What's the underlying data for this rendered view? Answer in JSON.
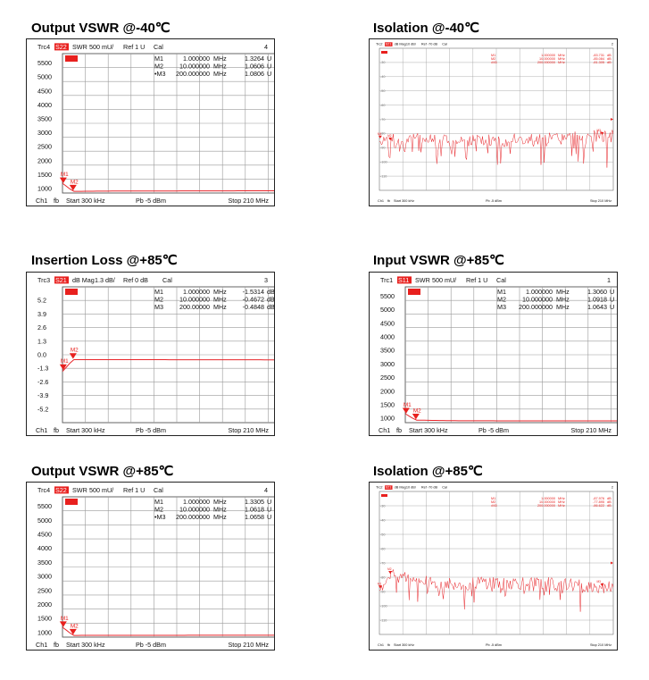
{
  "panels": [
    {
      "key": "p1",
      "title": "Output VSWR @-40℃",
      "header": {
        "trc": "Trc4",
        "meas": "S22",
        "fmt": "SWR",
        "scale": "500 mU/",
        "ref": "Ref 1 U",
        "cal": "Cal",
        "num": "4"
      },
      "yticks": [
        "5500",
        "5000",
        "4500",
        "4000",
        "3500",
        "3000",
        "2500",
        "2000",
        "1500",
        "1000"
      ],
      "markers": [
        {
          "name": "M1",
          "freq": "1.000000",
          "unit": "MHz",
          "val": "1.3264",
          "vunit": "U"
        },
        {
          "name": "M2",
          "freq": "10.000000",
          "unit": "MHz",
          "val": "1.0606",
          "vunit": "U"
        },
        {
          "name": "•M3",
          "freq": "200.000000",
          "unit": "MHz",
          "val": "1.0806",
          "vunit": "U"
        }
      ],
      "footer": {
        "ch": "Ch1",
        "fb": "fb",
        "start": "Start 300 kHz",
        "pb": "Pb  -5 dBm",
        "stop": "Stop 210 MHz"
      }
    },
    {
      "key": "p2",
      "title": "Isolation @-40℃",
      "header": {
        "trc": "Trc2",
        "meas": "S21",
        "fmt": "dB Mag",
        "scale": "10 dB/",
        "ref": "Ref -70 dB",
        "cal": "Cal",
        "num": "2"
      },
      "yticks": [
        "-30",
        "-40",
        "-50",
        "-60",
        "-70",
        "-80",
        "-90",
        "-100",
        "-110"
      ],
      "markers": [
        {
          "name": "M1",
          "freq": "1.000000",
          "unit": "MHz",
          "val": "-83.731",
          "vunit": "dB"
        },
        {
          "name": "M2",
          "freq": "10.000000",
          "unit": "MHz",
          "val": "-85.084",
          "vunit": "dB"
        },
        {
          "name": "•M3",
          "freq": "200.000000",
          "unit": "MHz",
          "val": "-81.305",
          "vunit": "dB"
        }
      ],
      "footer": {
        "ch": "Ch1",
        "fb": "fb",
        "start": "Start 300 kHz",
        "pb": "Pb  -5 dBm",
        "stop": "Stop 210 MHz"
      }
    },
    {
      "key": "p3",
      "title": "Insertion Loss @+85℃",
      "header": {
        "trc": "Trc3",
        "meas": "S21",
        "fmt": "dB Mag",
        "scale": "1.3 dB/",
        "ref": "Ref 0 dB",
        "cal": "Cal",
        "num": "3"
      },
      "yticks": [
        "5.2",
        "3.9",
        "2.6",
        "1.3",
        "0.0",
        "-1.3",
        "-2.6",
        "-3.9",
        "-5.2"
      ],
      "markers": [
        {
          "name": "M1",
          "freq": "1.000000",
          "unit": "MHz",
          "val": "-1.5314",
          "vunit": "dB"
        },
        {
          "name": "M2",
          "freq": "10.000000",
          "unit": "MHz",
          "val": "-0.4672",
          "vunit": "dB"
        },
        {
          "name": "M3",
          "freq": "200.00000",
          "unit": "MHz",
          "val": "-0.4848",
          "vunit": "dB"
        }
      ],
      "footer": {
        "ch": "Ch1",
        "fb": "fb",
        "start": "Start 300 kHz",
        "pb": "Pb  -5 dBm",
        "stop": "Stop 210 MHz"
      }
    },
    {
      "key": "p4",
      "title": "Input VSWR @+85℃",
      "header": {
        "trc": "Trc1",
        "meas": "S11",
        "fmt": "SWR",
        "scale": "500 mU/",
        "ref": "Ref 1 U",
        "cal": "Cal",
        "num": "1"
      },
      "yticks": [
        "5500",
        "5000",
        "4500",
        "4000",
        "3500",
        "3000",
        "2500",
        "2000",
        "1500",
        "1000"
      ],
      "markers": [
        {
          "name": "M1",
          "freq": "1.000000",
          "unit": "MHz",
          "val": "1.3060",
          "vunit": "U"
        },
        {
          "name": "M2",
          "freq": "10.000000",
          "unit": "MHz",
          "val": "1.0918",
          "vunit": "U"
        },
        {
          "name": "M3",
          "freq": "200.000000",
          "unit": "MHz",
          "val": "1.0643",
          "vunit": "U"
        }
      ],
      "footer": {
        "ch": "Ch1",
        "fb": "fb",
        "start": "Start 300 kHz",
        "pb": "Pb  -5 dBm",
        "stop": "Stop 210 MHz"
      }
    },
    {
      "key": "p5",
      "title": "Output VSWR @+85℃",
      "header": {
        "trc": "Trc4",
        "meas": "S22",
        "fmt": "SWR",
        "scale": "500 mU/",
        "ref": "Ref 1 U",
        "cal": "Cal",
        "num": "4"
      },
      "yticks": [
        "5500",
        "5000",
        "4500",
        "4000",
        "3500",
        "3000",
        "2500",
        "2000",
        "1500",
        "1000"
      ],
      "markers": [
        {
          "name": "M1",
          "freq": "1.000000",
          "unit": "MHz",
          "val": "1.3305",
          "vunit": "U"
        },
        {
          "name": "M2",
          "freq": "10.000000",
          "unit": "MHz",
          "val": "1.0618",
          "vunit": "U"
        },
        {
          "name": "•M3",
          "freq": "200.000000",
          "unit": "MHz",
          "val": "1.0658",
          "vunit": "U"
        }
      ],
      "footer": {
        "ch": "Ch1",
        "fb": "fb",
        "start": "Start 300 kHz",
        "pb": "Pb  -5 dBm",
        "stop": "Stop 210 MHz"
      }
    },
    {
      "key": "p6",
      "title": "Isolation @+85℃",
      "header": {
        "trc": "Trc2",
        "meas": "S21",
        "fmt": "dB Mag",
        "scale": "10 dB/",
        "ref": "Ref -70 dB",
        "cal": "Cal",
        "num": "2"
      },
      "yticks": [
        "-30",
        "-40",
        "-50",
        "-60",
        "-70",
        "-80",
        "-90",
        "-100",
        "-110"
      ],
      "markers": [
        {
          "name": "M1",
          "freq": "1.000000",
          "unit": "MHz",
          "val": "-87.976",
          "vunit": "dB"
        },
        {
          "name": "M2",
          "freq": "10.000000",
          "unit": "MHz",
          "val": "-77.895",
          "vunit": "dB"
        },
        {
          "name": "•M3",
          "freq": "200.000000",
          "unit": "MHz",
          "val": "-86.622",
          "vunit": "dB"
        }
      ],
      "footer": {
        "ch": "Ch1",
        "fb": "fb",
        "start": "Start 300 kHz",
        "pb": "Pb  -5 dBm",
        "stop": "Stop 210 MHz"
      }
    }
  ],
  "colors": {
    "trace": "#e8262b",
    "badge": "#e8201e",
    "grid": "#9a9a9a",
    "text": "#111111"
  },
  "chart_data": [
    {
      "type": "line",
      "title": "Output VSWR @-40℃",
      "x_unit": "MHz",
      "xlim": [
        0.3,
        210
      ],
      "ylim": [
        1,
        6
      ],
      "y_tick_labels": [
        "5500",
        "5000",
        "4500",
        "4000",
        "3500",
        "3000",
        "2500",
        "2000",
        "1500",
        "1000"
      ],
      "series": [
        {
          "name": "S22",
          "x": [
            0.3,
            1,
            10,
            50,
            100,
            150,
            200,
            210
          ],
          "y": [
            1.35,
            1.3264,
            1.0606,
            1.07,
            1.075,
            1.078,
            1.0806,
            1.08
          ]
        }
      ],
      "markers": [
        {
          "name": "M1",
          "x": 1,
          "y": 1.3264
        },
        {
          "name": "M2",
          "x": 10,
          "y": 1.0606
        },
        {
          "name": "M3",
          "x": 200,
          "y": 1.0806
        }
      ]
    },
    {
      "type": "line",
      "title": "Isolation @-40℃",
      "x_unit": "MHz",
      "xlim": [
        0.3,
        210
      ],
      "ylim": [
        -120,
        -20
      ],
      "y_tick_labels": [
        "-30",
        "-40",
        "-50",
        "-60",
        "-70",
        "-80",
        "-90",
        "-100",
        "-110"
      ],
      "series": [
        {
          "name": "S21",
          "x": [
            0.3,
            1,
            10,
            50,
            100,
            150,
            200,
            210
          ],
          "y": [
            -82,
            -83.731,
            -85.084,
            -84,
            -85,
            -84,
            -81.305,
            -82
          ]
        }
      ],
      "markers": [
        {
          "name": "M1",
          "x": 1,
          "y": -83.731
        },
        {
          "name": "M2",
          "x": 10,
          "y": -85.084
        },
        {
          "name": "M3",
          "x": 200,
          "y": -81.305
        }
      ]
    },
    {
      "type": "line",
      "title": "Insertion Loss @+85℃",
      "x_unit": "MHz",
      "xlim": [
        0.3,
        210
      ],
      "ylim": [
        -6.5,
        6.5
      ],
      "y_tick_labels": [
        "5.2",
        "3.9",
        "2.6",
        "1.3",
        "0.0",
        "-1.3",
        "-2.6",
        "-3.9",
        "-5.2"
      ],
      "series": [
        {
          "name": "S21",
          "x": [
            0.3,
            1,
            10,
            50,
            100,
            150,
            200,
            210
          ],
          "y": [
            -1.6,
            -1.5314,
            -0.4672,
            -0.47,
            -0.475,
            -0.48,
            -0.4848,
            -0.49
          ]
        }
      ],
      "markers": [
        {
          "name": "M1",
          "x": 1,
          "y": -1.5314
        },
        {
          "name": "M2",
          "x": 10,
          "y": -0.4672
        },
        {
          "name": "M3",
          "x": 200,
          "y": -0.4848
        }
      ]
    },
    {
      "type": "line",
      "title": "Input VSWR @+85℃",
      "x_unit": "MHz",
      "xlim": [
        0.3,
        210
      ],
      "ylim": [
        1,
        6
      ],
      "y_tick_labels": [
        "5500",
        "5000",
        "4500",
        "4000",
        "3500",
        "3000",
        "2500",
        "2000",
        "1500",
        "1000"
      ],
      "series": [
        {
          "name": "S11",
          "x": [
            0.3,
            1,
            10,
            50,
            100,
            150,
            200,
            210
          ],
          "y": [
            1.33,
            1.306,
            1.0918,
            1.07,
            1.066,
            1.065,
            1.0643,
            1.064
          ]
        }
      ],
      "markers": [
        {
          "name": "M1",
          "x": 1,
          "y": 1.306
        },
        {
          "name": "M2",
          "x": 10,
          "y": 1.0918
        },
        {
          "name": "M3",
          "x": 200,
          "y": 1.0643
        }
      ]
    },
    {
      "type": "line",
      "title": "Output VSWR @+85℃",
      "x_unit": "MHz",
      "xlim": [
        0.3,
        210
      ],
      "ylim": [
        1,
        6
      ],
      "y_tick_labels": [
        "5500",
        "5000",
        "4500",
        "4000",
        "3500",
        "3000",
        "2500",
        "2000",
        "1500",
        "1000"
      ],
      "series": [
        {
          "name": "S22",
          "x": [
            0.3,
            1,
            10,
            50,
            100,
            150,
            200,
            210
          ],
          "y": [
            1.35,
            1.3305,
            1.0618,
            1.064,
            1.065,
            1.066,
            1.0658,
            1.066
          ]
        }
      ],
      "markers": [
        {
          "name": "M1",
          "x": 1,
          "y": 1.3305
        },
        {
          "name": "M2",
          "x": 10,
          "y": 1.0618
        },
        {
          "name": "M3",
          "x": 200,
          "y": 1.0658
        }
      ]
    },
    {
      "type": "line",
      "title": "Isolation @+85℃",
      "x_unit": "MHz",
      "xlim": [
        0.3,
        210
      ],
      "ylim": [
        -120,
        -20
      ],
      "y_tick_labels": [
        "-30",
        "-40",
        "-50",
        "-60",
        "-70",
        "-80",
        "-90",
        "-100",
        "-110"
      ],
      "series": [
        {
          "name": "S21",
          "x": [
            0.3,
            1,
            10,
            50,
            100,
            150,
            200,
            210
          ],
          "y": [
            -85,
            -87.976,
            -77.895,
            -85,
            -84,
            -85,
            -86.622,
            -85
          ]
        }
      ],
      "markers": [
        {
          "name": "M1",
          "x": 1,
          "y": -87.976
        },
        {
          "name": "M2",
          "x": 10,
          "y": -77.895
        },
        {
          "name": "M3",
          "x": 200,
          "y": -86.622
        }
      ]
    }
  ]
}
